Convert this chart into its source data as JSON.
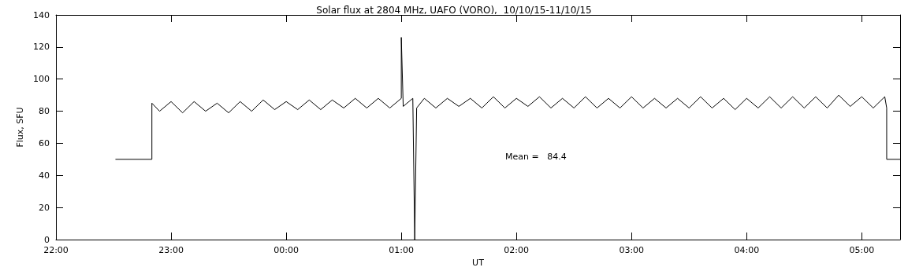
{
  "chart_data": {
    "type": "line",
    "title": "Solar flux at 2804 MHz, UAFO (VORO),  10/10/15-11/10/15",
    "xlabel": "UT",
    "ylabel": "Flux, SFU",
    "annotations": [
      "Mean =   84.4"
    ],
    "xlim": [
      "--10-10T22:00",
      "--10-11T05:20"
    ],
    "xticks": [
      {
        "value": "--10-10T22:00",
        "label": "22:00"
      },
      {
        "value": "--10-10T23:00",
        "label": "23:00"
      },
      {
        "value": "--10-11T00:00",
        "label": "00:00"
      },
      {
        "value": "--10-11T01:00",
        "label": "01:00"
      },
      {
        "value": "--10-11T02:00",
        "label": "02:00"
      },
      {
        "value": "--10-11T03:00",
        "label": "03:00"
      },
      {
        "value": "--10-11T04:00",
        "label": "04:00"
      },
      {
        "value": "--10-11T05:00",
        "label": "05:00"
      }
    ],
    "ylim": [
      0,
      140
    ],
    "yticks": [
      0,
      20,
      40,
      60,
      80,
      100,
      120,
      140
    ],
    "grid": false,
    "marker": "none",
    "line_style": "solid",
    "series": [
      {
        "color": "#000000",
        "x": [
          "--10-10T22:31",
          "--10-10T22:50",
          "--10-10T22:50",
          "--10-10T22:54",
          "--10-10T23:00",
          "--10-10T23:06",
          "--10-10T23:12",
          "--10-10T23:18",
          "--10-10T23:24",
          "--10-10T23:30",
          "--10-10T23:36",
          "--10-10T23:42",
          "--10-10T23:48",
          "--10-10T23:54",
          "--10-11T00:00",
          "--10-11T00:06",
          "--10-11T00:12",
          "--10-11T00:18",
          "--10-11T00:24",
          "--10-11T00:30",
          "--10-11T00:36",
          "--10-11T00:42",
          "--10-11T00:48",
          "--10-11T00:54",
          "--10-11T01:00",
          "--10-11T01:00",
          "--10-11T01:01",
          "--10-11T01:06",
          "--10-11T01:07",
          "--10-11T01:08",
          "--10-11T01:12",
          "--10-11T01:18",
          "--10-11T01:24",
          "--10-11T01:30",
          "--10-11T01:36",
          "--10-11T01:42",
          "--10-11T01:48",
          "--10-11T01:54",
          "--10-11T02:00",
          "--10-11T02:06",
          "--10-11T02:12",
          "--10-11T02:18",
          "--10-11T02:24",
          "--10-11T02:30",
          "--10-11T02:36",
          "--10-11T02:42",
          "--10-11T02:48",
          "--10-11T02:54",
          "--10-11T03:00",
          "--10-11T03:06",
          "--10-11T03:12",
          "--10-11T03:18",
          "--10-11T03:24",
          "--10-11T03:30",
          "--10-11T03:36",
          "--10-11T03:42",
          "--10-11T03:48",
          "--10-11T03:54",
          "--10-11T04:00",
          "--10-11T04:06",
          "--10-11T04:12",
          "--10-11T04:18",
          "--10-11T04:24",
          "--10-11T04:30",
          "--10-11T04:36",
          "--10-11T04:42",
          "--10-11T04:48",
          "--10-11T04:54",
          "--10-11T05:00",
          "--10-11T05:06",
          "--10-11T05:12",
          "--10-11T05:13",
          "--10-11T05:13",
          "--10-11T05:20"
        ],
        "values": [
          50,
          50,
          85,
          80,
          86,
          79,
          86,
          80,
          85,
          79,
          86,
          80,
          87,
          81,
          86,
          81,
          87,
          81,
          87,
          82,
          88,
          82,
          88,
          82,
          88,
          126,
          83,
          88,
          0,
          82,
          88,
          82,
          88,
          83,
          88,
          82,
          89,
          82,
          88,
          83,
          89,
          82,
          88,
          82,
          89,
          82,
          88,
          82,
          89,
          82,
          88,
          82,
          88,
          82,
          89,
          82,
          88,
          81,
          88,
          82,
          89,
          82,
          89,
          82,
          89,
          82,
          90,
          83,
          89,
          82,
          89,
          82,
          50,
          50
        ]
      }
    ]
  }
}
